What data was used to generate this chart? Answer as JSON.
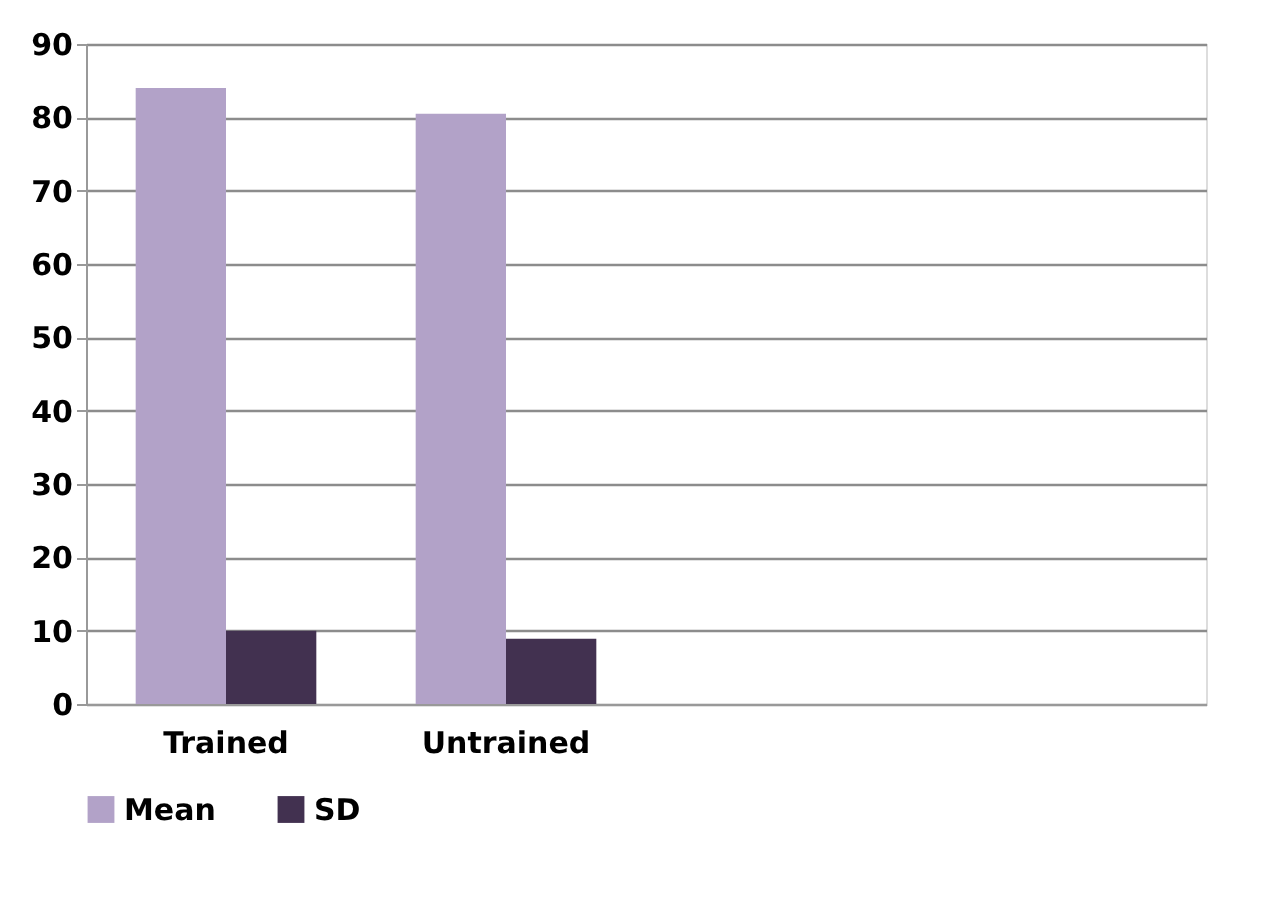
{
  "chart_data": {
    "type": "bar",
    "categories": [
      "Trained",
      "Untrained",
      null,
      null
    ],
    "series": [
      {
        "name": "Mean",
        "color": "#b2a2c8",
        "values": [
          84,
          80.5,
          null,
          null
        ]
      },
      {
        "name": "SD",
        "color": "#423150",
        "values": [
          10,
          8.9,
          null,
          null
        ]
      }
    ],
    "ylim": [
      0,
      90
    ],
    "yticks": [
      0,
      10,
      20,
      30,
      40,
      50,
      60,
      70,
      80,
      90
    ],
    "grid": "y",
    "legend": "bottom"
  }
}
